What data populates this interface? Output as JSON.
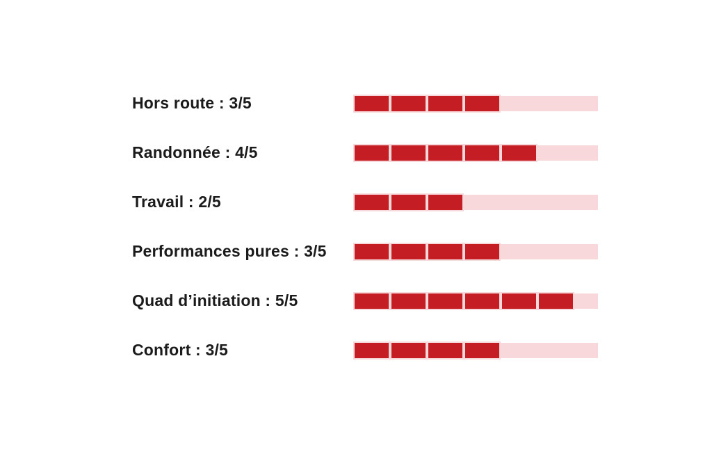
{
  "chart_data": {
    "type": "bar",
    "orientation": "horizontal",
    "title": "",
    "categories": [
      "Hors route",
      "Randonnée",
      "Travail",
      "Performances pures",
      "Quad d’initiation",
      "Confort"
    ],
    "values": [
      3,
      4,
      2,
      3,
      5,
      3
    ],
    "value_max": 5,
    "value_labels": [
      "3/5",
      "4/5",
      "2/5",
      "3/5",
      "5/5",
      "3/5"
    ],
    "xlabel": "",
    "ylabel": "",
    "xlim": [
      0,
      5
    ],
    "grid": false,
    "legend": false,
    "style": "segmented rating bars, filled segments shown = value + 1, remainder drawn as solid light-pink track"
  },
  "rows": [
    {
      "label": "Hors route : 3/5",
      "rating": 3,
      "max": 5,
      "filled_segments": 4
    },
    {
      "label": "Randonnée : 4/5",
      "rating": 4,
      "max": 5,
      "filled_segments": 5
    },
    {
      "label": "Travail : 2/5",
      "rating": 2,
      "max": 5,
      "filled_segments": 3
    },
    {
      "label": "Performances pures : 3/5",
      "rating": 3,
      "max": 5,
      "filled_segments": 4
    },
    {
      "label": "Quad d’initiation : 5/5",
      "rating": 5,
      "max": 5,
      "filled_segments": 6
    },
    {
      "label": "Confort : 3/5",
      "rating": 3,
      "max": 5,
      "filled_segments": 4
    }
  ],
  "colors": {
    "filled": "#c41e24",
    "track": "#f8d8da",
    "segment_border": "#f7d9db",
    "text": "#1b1b1b",
    "background": "#ffffff"
  }
}
